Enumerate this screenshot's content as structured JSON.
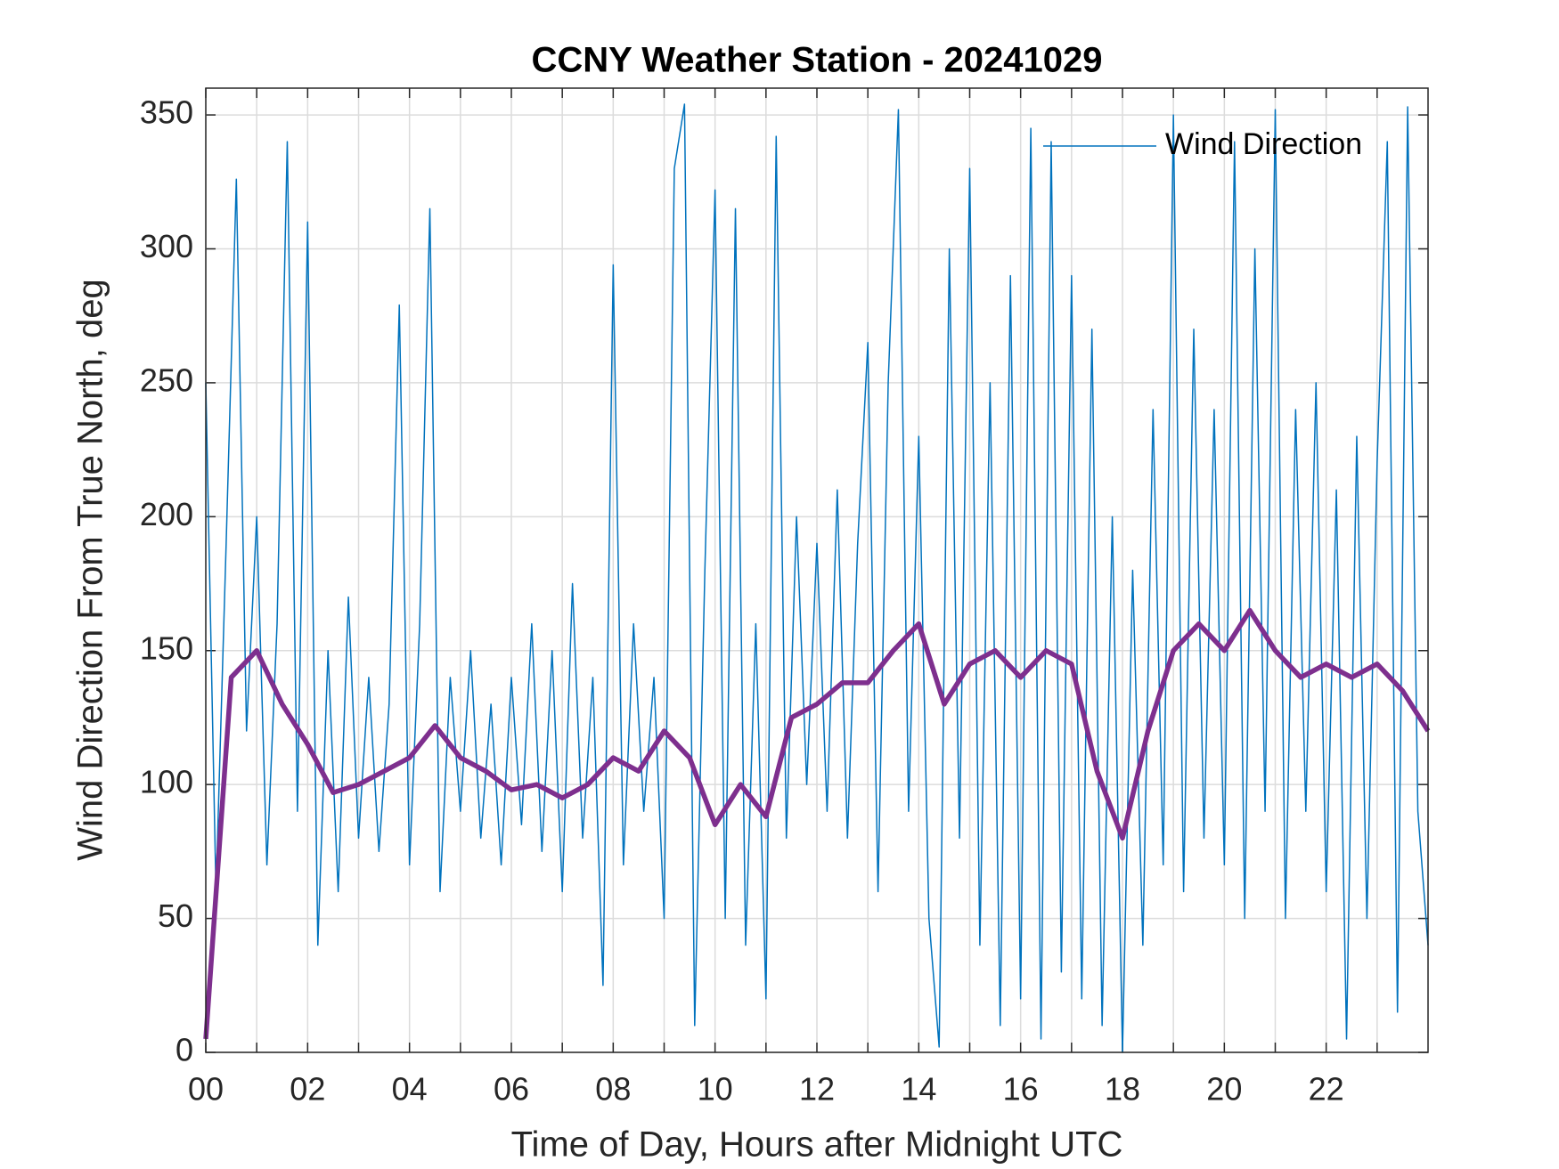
{
  "chart_data": {
    "type": "line",
    "title": "CCNY Weather Station - 20241029",
    "xlabel": "Time of Day, Hours after Midnight UTC",
    "ylabel": "Wind Direction From True North, deg",
    "xlim": [
      0,
      24
    ],
    "ylim": [
      0,
      360
    ],
    "xticks": [
      {
        "value": 0,
        "label": "00"
      },
      {
        "value": 2,
        "label": "02"
      },
      {
        "value": 4,
        "label": "04"
      },
      {
        "value": 6,
        "label": "06"
      },
      {
        "value": 8,
        "label": "08"
      },
      {
        "value": 10,
        "label": "10"
      },
      {
        "value": 12,
        "label": "12"
      },
      {
        "value": 14,
        "label": "14"
      },
      {
        "value": 16,
        "label": "16"
      },
      {
        "value": 18,
        "label": "18"
      },
      {
        "value": 20,
        "label": "20"
      },
      {
        "value": 22,
        "label": "22"
      }
    ],
    "xminorticks": [
      1,
      3,
      5,
      7,
      9,
      11,
      13,
      15,
      17,
      19,
      21,
      23
    ],
    "yticks": [
      0,
      50,
      100,
      150,
      200,
      250,
      300,
      350
    ],
    "grid": true,
    "legend": "upper right",
    "series": [
      {
        "name": "Wind Direction",
        "color": "#0072bd",
        "x": [
          0,
          0.2,
          0.4,
          0.6,
          0.8,
          1,
          1.2,
          1.4,
          1.6,
          1.8,
          2,
          2.2,
          2.4,
          2.6,
          2.8,
          3,
          3.2,
          3.4,
          3.6,
          3.8,
          4,
          4.2,
          4.4,
          4.6,
          4.8,
          5,
          5.2,
          5.4,
          5.6,
          5.8,
          6,
          6.2,
          6.4,
          6.6,
          6.8,
          7,
          7.2,
          7.4,
          7.6,
          7.8,
          8,
          8.2,
          8.4,
          8.6,
          8.8,
          9,
          9.2,
          9.4,
          9.6,
          9.8,
          10,
          10.2,
          10.4,
          10.6,
          10.8,
          11,
          11.2,
          11.4,
          11.6,
          11.8,
          12,
          12.2,
          12.4,
          12.6,
          12.8,
          13,
          13.2,
          13.4,
          13.6,
          13.8,
          14,
          14.2,
          14.4,
          14.6,
          14.8,
          15,
          15.2,
          15.4,
          15.6,
          15.8,
          16,
          16.2,
          16.4,
          16.6,
          16.8,
          17,
          17.2,
          17.4,
          17.6,
          17.8,
          18,
          18.2,
          18.4,
          18.6,
          18.8,
          19,
          19.2,
          19.4,
          19.6,
          19.8,
          20,
          20.2,
          20.4,
          20.6,
          20.8,
          21,
          21.2,
          21.4,
          21.6,
          21.8,
          22,
          22.2,
          22.4,
          22.6,
          22.8,
          23,
          23.2,
          23.4,
          23.6,
          23.8,
          24
        ],
        "values": [
          250,
          60,
          190,
          326,
          120,
          200,
          70,
          160,
          340,
          90,
          310,
          40,
          150,
          60,
          170,
          80,
          140,
          75,
          130,
          279,
          70,
          160,
          315,
          60,
          140,
          90,
          150,
          80,
          130,
          70,
          140,
          85,
          160,
          75,
          150,
          60,
          175,
          80,
          140,
          25,
          294,
          70,
          160,
          90,
          140,
          50,
          330,
          354,
          10,
          180,
          322,
          50,
          315,
          40,
          160,
          20,
          342,
          80,
          200,
          100,
          190,
          90,
          210,
          80,
          190,
          265,
          60,
          250,
          352,
          90,
          230,
          50,
          2,
          300,
          80,
          330,
          40,
          250,
          10,
          290,
          20,
          345,
          5,
          340,
          30,
          290,
          20,
          270,
          10,
          200,
          0,
          180,
          40,
          240,
          70,
          350,
          60,
          270,
          80,
          240,
          70,
          340,
          50,
          300,
          90,
          352,
          50,
          240,
          90,
          250,
          60,
          210,
          5,
          230,
          50,
          220,
          340,
          15,
          353,
          90,
          40
        ]
      },
      {
        "color": "#7e2f8e",
        "x": [
          0,
          0.5,
          1,
          1.5,
          2,
          2.5,
          3,
          3.5,
          4,
          4.5,
          5,
          5.5,
          6,
          6.5,
          7,
          7.5,
          8,
          8.5,
          9,
          9.5,
          10,
          10.5,
          11,
          11.5,
          12,
          12.5,
          13,
          13.5,
          14,
          14.5,
          15,
          15.5,
          16,
          16.5,
          17,
          17.5,
          18,
          18.5,
          19,
          19.5,
          20,
          20.5,
          21,
          21.5,
          22,
          22.5,
          23,
          23.5,
          24
        ],
        "values": [
          5,
          140,
          150,
          130,
          115,
          97,
          100,
          105,
          110,
          122,
          110,
          105,
          98,
          100,
          95,
          100,
          110,
          105,
          120,
          110,
          85,
          100,
          88,
          125,
          130,
          138,
          138,
          150,
          160,
          130,
          145,
          150,
          140,
          150,
          145,
          105,
          80,
          120,
          150,
          160,
          150,
          165,
          150,
          140,
          145,
          140,
          145,
          135,
          120
        ]
      }
    ]
  }
}
